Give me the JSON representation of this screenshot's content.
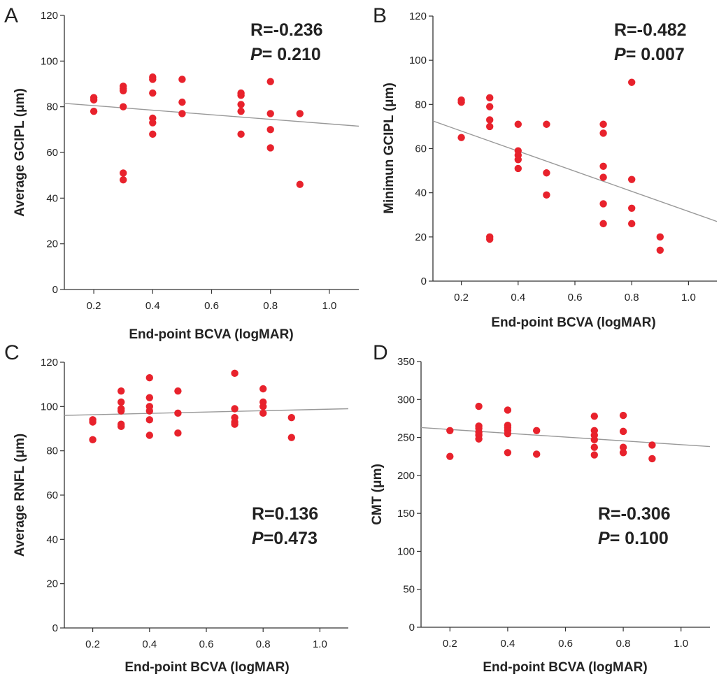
{
  "chart_data": [
    {
      "type": "scatter",
      "panel_label": "A",
      "xlabel": "End-point BCVA (logMAR)",
      "ylabel": "Average GCIPL (μm)",
      "xlim": [
        0.1,
        1.1
      ],
      "ylim": [
        0,
        120
      ],
      "xticks": [
        0.2,
        0.4,
        0.6,
        0.8,
        1.0
      ],
      "xtick_labels": [
        "0.2",
        "0.4",
        "0.6",
        "0.8",
        "1.0"
      ],
      "yticks": [
        0,
        20,
        40,
        60,
        80,
        100,
        120
      ],
      "ytick_labels": [
        "0",
        "20",
        "40",
        "60",
        "80",
        "100",
        "120"
      ],
      "stat_layout": "top-right",
      "stat_r": "R=-0.236",
      "stat_p_symbol": "P",
      "stat_p_value": "= 0.210",
      "fit_line": {
        "x": [
          0.1,
          1.1
        ],
        "y": [
          81.5,
          71.5
        ]
      },
      "points": [
        {
          "x": 0.2,
          "y": 84
        },
        {
          "x": 0.2,
          "y": 83
        },
        {
          "x": 0.2,
          "y": 78
        },
        {
          "x": 0.3,
          "y": 89
        },
        {
          "x": 0.3,
          "y": 88
        },
        {
          "x": 0.3,
          "y": 87
        },
        {
          "x": 0.3,
          "y": 80
        },
        {
          "x": 0.3,
          "y": 51
        },
        {
          "x": 0.3,
          "y": 48
        },
        {
          "x": 0.4,
          "y": 93
        },
        {
          "x": 0.4,
          "y": 92
        },
        {
          "x": 0.4,
          "y": 86
        },
        {
          "x": 0.4,
          "y": 75
        },
        {
          "x": 0.4,
          "y": 73
        },
        {
          "x": 0.4,
          "y": 68
        },
        {
          "x": 0.5,
          "y": 92
        },
        {
          "x": 0.5,
          "y": 82
        },
        {
          "x": 0.5,
          "y": 77
        },
        {
          "x": 0.7,
          "y": 86
        },
        {
          "x": 0.7,
          "y": 85
        },
        {
          "x": 0.7,
          "y": 81
        },
        {
          "x": 0.7,
          "y": 78
        },
        {
          "x": 0.7,
          "y": 68
        },
        {
          "x": 0.8,
          "y": 91
        },
        {
          "x": 0.8,
          "y": 77
        },
        {
          "x": 0.8,
          "y": 70
        },
        {
          "x": 0.8,
          "y": 62
        },
        {
          "x": 0.9,
          "y": 77
        },
        {
          "x": 0.9,
          "y": 46
        }
      ]
    },
    {
      "type": "scatter",
      "panel_label": "B",
      "xlabel": "End-point BCVA (logMAR)",
      "ylabel": "Minimun GCIPL (μm)",
      "xlim": [
        0.1,
        1.1
      ],
      "ylim": [
        0,
        120
      ],
      "xticks": [
        0.2,
        0.4,
        0.6,
        0.8,
        1.0
      ],
      "xtick_labels": [
        "0.2",
        "0.4",
        "0.6",
        "0.8",
        "1.0"
      ],
      "yticks": [
        0,
        20,
        40,
        60,
        80,
        100,
        120
      ],
      "ytick_labels": [
        "0",
        "20",
        "40",
        "60",
        "80",
        "100",
        "120"
      ],
      "stat_layout": "top-right",
      "stat_r": "R=-0.482",
      "stat_p_symbol": "P",
      "stat_p_value": "= 0.007",
      "fit_line": {
        "x": [
          0.1,
          1.1
        ],
        "y": [
          72.5,
          27
        ]
      },
      "points": [
        {
          "x": 0.2,
          "y": 82
        },
        {
          "x": 0.2,
          "y": 81
        },
        {
          "x": 0.2,
          "y": 65
        },
        {
          "x": 0.3,
          "y": 83
        },
        {
          "x": 0.3,
          "y": 79
        },
        {
          "x": 0.3,
          "y": 73
        },
        {
          "x": 0.3,
          "y": 70
        },
        {
          "x": 0.3,
          "y": 20
        },
        {
          "x": 0.3,
          "y": 19
        },
        {
          "x": 0.4,
          "y": 71
        },
        {
          "x": 0.4,
          "y": 59
        },
        {
          "x": 0.4,
          "y": 57
        },
        {
          "x": 0.4,
          "y": 55
        },
        {
          "x": 0.4,
          "y": 51
        },
        {
          "x": 0.5,
          "y": 71
        },
        {
          "x": 0.5,
          "y": 49
        },
        {
          "x": 0.5,
          "y": 39
        },
        {
          "x": 0.7,
          "y": 71
        },
        {
          "x": 0.7,
          "y": 67
        },
        {
          "x": 0.7,
          "y": 52
        },
        {
          "x": 0.7,
          "y": 47
        },
        {
          "x": 0.7,
          "y": 35
        },
        {
          "x": 0.7,
          "y": 26
        },
        {
          "x": 0.8,
          "y": 90
        },
        {
          "x": 0.8,
          "y": 46
        },
        {
          "x": 0.8,
          "y": 33
        },
        {
          "x": 0.8,
          "y": 26
        },
        {
          "x": 0.9,
          "y": 20
        },
        {
          "x": 0.9,
          "y": 14
        }
      ]
    },
    {
      "type": "scatter",
      "panel_label": "C",
      "xlabel": "End-point BCVA (logMAR)",
      "ylabel": "Average RNFL (μm)",
      "xlim": [
        0.1,
        1.1
      ],
      "ylim": [
        0,
        120
      ],
      "xticks": [
        0.2,
        0.4,
        0.6,
        0.8,
        1.0
      ],
      "xtick_labels": [
        "0.2",
        "0.4",
        "0.6",
        "0.8",
        "1.0"
      ],
      "yticks": [
        0,
        20,
        40,
        60,
        80,
        100,
        120
      ],
      "ytick_labels": [
        "0",
        "20",
        "40",
        "60",
        "80",
        "100",
        "120"
      ],
      "stat_layout": "bottom-right",
      "stat_r": "R=0.136",
      "stat_p_symbol": "P",
      "stat_p_value": "=0.473",
      "fit_line": {
        "x": [
          0.1,
          1.1
        ],
        "y": [
          96,
          99
        ]
      },
      "points": [
        {
          "x": 0.2,
          "y": 94
        },
        {
          "x": 0.2,
          "y": 93
        },
        {
          "x": 0.2,
          "y": 85
        },
        {
          "x": 0.3,
          "y": 107
        },
        {
          "x": 0.3,
          "y": 102
        },
        {
          "x": 0.3,
          "y": 99
        },
        {
          "x": 0.3,
          "y": 98
        },
        {
          "x": 0.3,
          "y": 92
        },
        {
          "x": 0.3,
          "y": 91
        },
        {
          "x": 0.4,
          "y": 113
        },
        {
          "x": 0.4,
          "y": 104
        },
        {
          "x": 0.4,
          "y": 100
        },
        {
          "x": 0.4,
          "y": 98
        },
        {
          "x": 0.4,
          "y": 94
        },
        {
          "x": 0.4,
          "y": 87
        },
        {
          "x": 0.5,
          "y": 107
        },
        {
          "x": 0.5,
          "y": 97
        },
        {
          "x": 0.5,
          "y": 88
        },
        {
          "x": 0.7,
          "y": 115
        },
        {
          "x": 0.7,
          "y": 99
        },
        {
          "x": 0.7,
          "y": 95
        },
        {
          "x": 0.7,
          "y": 93
        },
        {
          "x": 0.7,
          "y": 92
        },
        {
          "x": 0.8,
          "y": 108
        },
        {
          "x": 0.8,
          "y": 102
        },
        {
          "x": 0.8,
          "y": 100
        },
        {
          "x": 0.8,
          "y": 97
        },
        {
          "x": 0.9,
          "y": 95
        },
        {
          "x": 0.9,
          "y": 86
        }
      ]
    },
    {
      "type": "scatter",
      "panel_label": "D",
      "xlabel": "End-point BCVA (logMAR)",
      "ylabel": "CMT (μm)",
      "xlim": [
        0.1,
        1.1
      ],
      "ylim": [
        0,
        350
      ],
      "xticks": [
        0.2,
        0.4,
        0.6,
        0.8,
        1.0
      ],
      "xtick_labels": [
        "0.2",
        "0.4",
        "0.6",
        "0.8",
        "1.0"
      ],
      "yticks": [
        0,
        50,
        100,
        150,
        200,
        250,
        300,
        350
      ],
      "ytick_labels": [
        "0",
        "50",
        "100",
        "150",
        "200",
        "250",
        "300",
        "350"
      ],
      "stat_layout": "bottom-right",
      "stat_r": "R=-0.306",
      "stat_p_symbol": "P",
      "stat_p_value": "= 0.100",
      "fit_line": {
        "x": [
          0.1,
          1.1
        ],
        "y": [
          263,
          238
        ]
      },
      "points": [
        {
          "x": 0.2,
          "y": 259
        },
        {
          "x": 0.2,
          "y": 225
        },
        {
          "x": 0.3,
          "y": 291
        },
        {
          "x": 0.3,
          "y": 265
        },
        {
          "x": 0.3,
          "y": 262
        },
        {
          "x": 0.3,
          "y": 257
        },
        {
          "x": 0.3,
          "y": 253
        },
        {
          "x": 0.3,
          "y": 248
        },
        {
          "x": 0.4,
          "y": 286
        },
        {
          "x": 0.4,
          "y": 266
        },
        {
          "x": 0.4,
          "y": 263
        },
        {
          "x": 0.4,
          "y": 259
        },
        {
          "x": 0.4,
          "y": 255
        },
        {
          "x": 0.4,
          "y": 230
        },
        {
          "x": 0.5,
          "y": 259
        },
        {
          "x": 0.5,
          "y": 228
        },
        {
          "x": 0.7,
          "y": 278
        },
        {
          "x": 0.7,
          "y": 259
        },
        {
          "x": 0.7,
          "y": 253
        },
        {
          "x": 0.7,
          "y": 247
        },
        {
          "x": 0.7,
          "y": 237
        },
        {
          "x": 0.7,
          "y": 227
        },
        {
          "x": 0.8,
          "y": 279
        },
        {
          "x": 0.8,
          "y": 258
        },
        {
          "x": 0.8,
          "y": 237
        },
        {
          "x": 0.8,
          "y": 230
        },
        {
          "x": 0.9,
          "y": 240
        },
        {
          "x": 0.9,
          "y": 222
        }
      ]
    }
  ]
}
